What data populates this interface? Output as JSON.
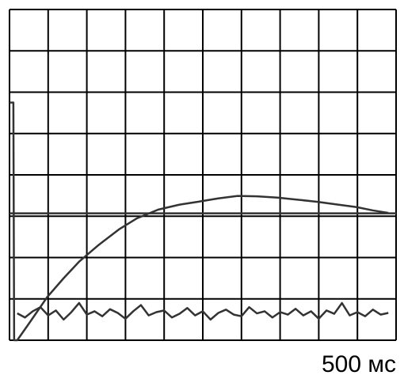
{
  "chart_data": {
    "type": "line",
    "xlim": [
      0,
      10
    ],
    "ylim": [
      0,
      8
    ],
    "grid": true,
    "color": "#000000",
    "annotation": "500 мс",
    "series": [
      {
        "color": "#333333",
        "x": [
          0,
          0.1,
          0.12,
          0.2,
          0.5,
          0.98,
          1.4,
          1.8,
          2.3,
          2.83,
          3.3,
          3.85,
          4.4,
          4.88,
          5.4,
          5.9,
          6.4,
          6.93,
          7.45,
          7.95,
          8.5,
          8.98,
          9.4,
          9.8
        ],
        "values": [
          5.75,
          5.75,
          0,
          0,
          0.4,
          1.05,
          1.5,
          1.9,
          2.3,
          2.68,
          2.95,
          3.16,
          3.28,
          3.35,
          3.43,
          3.49,
          3.48,
          3.45,
          3.4,
          3.35,
          3.28,
          3.22,
          3.14,
          3.08
        ]
      },
      {
        "color": "#333333",
        "x": [
          0,
          10
        ],
        "values": [
          3.07,
          3.07
        ]
      },
      {
        "color": "#333333",
        "x": [
          0.2,
          0.4,
          0.6,
          0.8,
          1,
          1.2,
          1.4,
          1.6,
          1.8,
          2,
          2.2,
          2.4,
          2.6,
          2.8,
          3,
          3.2,
          3.4,
          3.6,
          3.8,
          4,
          4.2,
          4.4,
          4.6,
          4.8,
          5,
          5.2,
          5.4,
          5.6,
          5.8,
          6,
          6.2,
          6.4,
          6.6,
          6.8,
          7,
          7.2,
          7.4,
          7.6,
          7.8,
          8,
          8.2,
          8.4,
          8.6,
          8.8,
          9,
          9.2,
          9.4,
          9.6,
          9.8
        ],
        "values": [
          0.65,
          0.55,
          0.7,
          0.8,
          0.6,
          0.72,
          0.5,
          0.68,
          0.9,
          0.62,
          0.7,
          0.58,
          0.75,
          0.66,
          0.52,
          0.7,
          0.85,
          0.6,
          0.68,
          0.72,
          0.55,
          0.64,
          0.78,
          0.6,
          0.7,
          0.5,
          0.66,
          0.74,
          0.62,
          0.58,
          0.8,
          0.65,
          0.7,
          0.55,
          0.68,
          0.62,
          0.76,
          0.6,
          0.7,
          0.52,
          0.72,
          0.64,
          0.9,
          0.6,
          0.68,
          0.58,
          0.74,
          0.62,
          0.66
        ]
      }
    ]
  }
}
